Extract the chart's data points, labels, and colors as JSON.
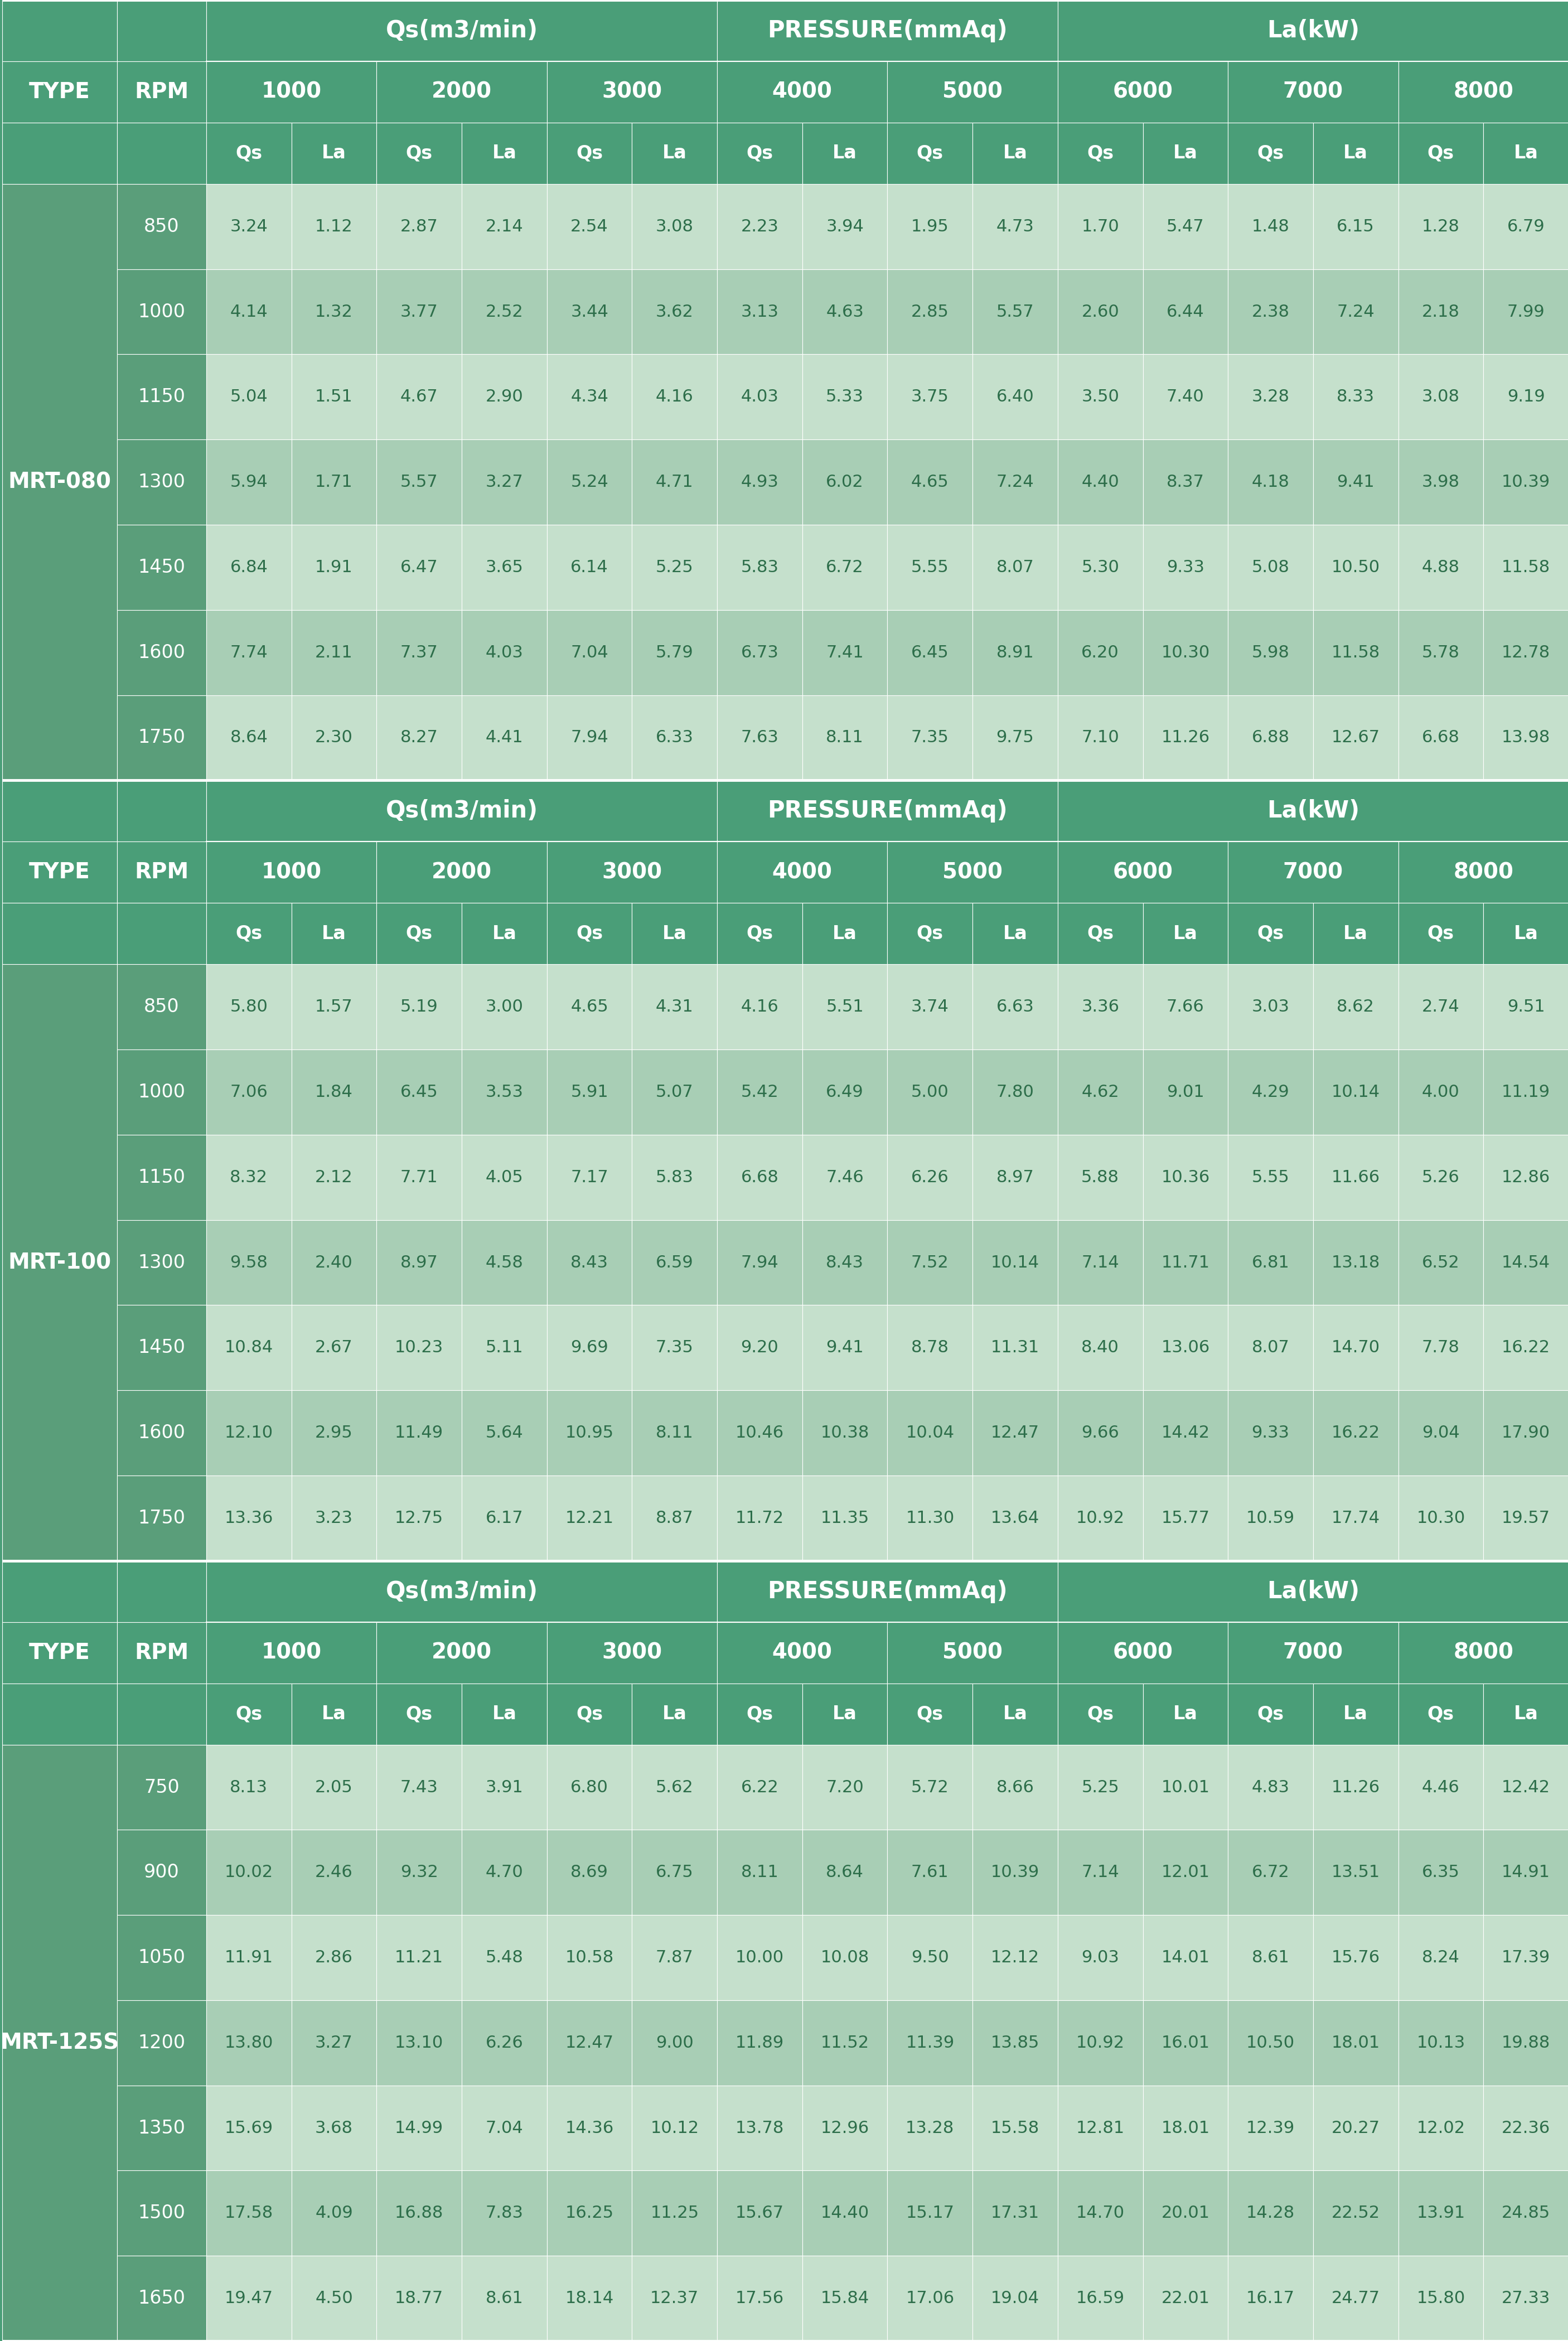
{
  "header_bg": "#4a9e78",
  "header_bg2": "#3d8f6a",
  "row_bg_light": "#c5e0cc",
  "row_bg_mid": "#a8ceb5",
  "type_col_bg": "#5a9e7a",
  "rpm_col_bg": "#5a9e7a",
  "header_text_color": "#ffffff",
  "data_text_color": "#2d6e4a",
  "type_text_color": "#ffffff",
  "pressure_labels": [
    "1000",
    "2000",
    "3000",
    "4000",
    "5000",
    "6000",
    "7000",
    "8000"
  ],
  "sections": [
    {
      "type": "MRT-080",
      "rows": [
        {
          "rpm": 850,
          "data": [
            3.24,
            1.12,
            2.87,
            2.14,
            2.54,
            3.08,
            2.23,
            3.94,
            1.95,
            4.73,
            1.7,
            5.47,
            1.48,
            6.15,
            1.28,
            6.79
          ]
        },
        {
          "rpm": 1000,
          "data": [
            4.14,
            1.32,
            3.77,
            2.52,
            3.44,
            3.62,
            3.13,
            4.63,
            2.85,
            5.57,
            2.6,
            6.44,
            2.38,
            7.24,
            2.18,
            7.99
          ]
        },
        {
          "rpm": 1150,
          "data": [
            5.04,
            1.51,
            4.67,
            2.9,
            4.34,
            4.16,
            4.03,
            5.33,
            3.75,
            6.4,
            3.5,
            7.4,
            3.28,
            8.33,
            3.08,
            9.19
          ]
        },
        {
          "rpm": 1300,
          "data": [
            5.94,
            1.71,
            5.57,
            3.27,
            5.24,
            4.71,
            4.93,
            6.02,
            4.65,
            7.24,
            4.4,
            8.37,
            4.18,
            9.41,
            3.98,
            10.39
          ]
        },
        {
          "rpm": 1450,
          "data": [
            6.84,
            1.91,
            6.47,
            3.65,
            6.14,
            5.25,
            5.83,
            6.72,
            5.55,
            8.07,
            5.3,
            9.33,
            5.08,
            10.5,
            4.88,
            11.58
          ]
        },
        {
          "rpm": 1600,
          "data": [
            7.74,
            2.11,
            7.37,
            4.03,
            7.04,
            5.79,
            6.73,
            7.41,
            6.45,
            8.91,
            6.2,
            10.3,
            5.98,
            11.58,
            5.78,
            12.78
          ]
        },
        {
          "rpm": 1750,
          "data": [
            8.64,
            2.3,
            8.27,
            4.41,
            7.94,
            6.33,
            7.63,
            8.11,
            7.35,
            9.75,
            7.1,
            11.26,
            6.88,
            12.67,
            6.68,
            13.98
          ]
        }
      ]
    },
    {
      "type": "MRT-100",
      "rows": [
        {
          "rpm": 850,
          "data": [
            5.8,
            1.57,
            5.19,
            3.0,
            4.65,
            4.31,
            4.16,
            5.51,
            3.74,
            6.63,
            3.36,
            7.66,
            3.03,
            8.62,
            2.74,
            9.51
          ]
        },
        {
          "rpm": 1000,
          "data": [
            7.06,
            1.84,
            6.45,
            3.53,
            5.91,
            5.07,
            5.42,
            6.49,
            5.0,
            7.8,
            4.62,
            9.01,
            4.29,
            10.14,
            4.0,
            11.19
          ]
        },
        {
          "rpm": 1150,
          "data": [
            8.32,
            2.12,
            7.71,
            4.05,
            7.17,
            5.83,
            6.68,
            7.46,
            6.26,
            8.97,
            5.88,
            10.36,
            5.55,
            11.66,
            5.26,
            12.86
          ]
        },
        {
          "rpm": 1300,
          "data": [
            9.58,
            2.4,
            8.97,
            4.58,
            8.43,
            6.59,
            7.94,
            8.43,
            7.52,
            10.14,
            7.14,
            11.71,
            6.81,
            13.18,
            6.52,
            14.54
          ]
        },
        {
          "rpm": 1450,
          "data": [
            10.84,
            2.67,
            10.23,
            5.11,
            9.69,
            7.35,
            9.2,
            9.41,
            8.78,
            11.31,
            8.4,
            13.06,
            8.07,
            14.7,
            7.78,
            16.22
          ]
        },
        {
          "rpm": 1600,
          "data": [
            12.1,
            2.95,
            11.49,
            5.64,
            10.95,
            8.11,
            10.46,
            10.38,
            10.04,
            12.47,
            9.66,
            14.42,
            9.33,
            16.22,
            9.04,
            17.9
          ]
        },
        {
          "rpm": 1750,
          "data": [
            13.36,
            3.23,
            12.75,
            6.17,
            12.21,
            8.87,
            11.72,
            11.35,
            11.3,
            13.64,
            10.92,
            15.77,
            10.59,
            17.74,
            10.3,
            19.57
          ]
        }
      ]
    },
    {
      "type": "MRT-125S",
      "rows": [
        {
          "rpm": 750,
          "data": [
            8.13,
            2.05,
            7.43,
            3.91,
            6.8,
            5.62,
            6.22,
            7.2,
            5.72,
            8.66,
            5.25,
            10.01,
            4.83,
            11.26,
            4.46,
            12.42
          ]
        },
        {
          "rpm": 900,
          "data": [
            10.02,
            2.46,
            9.32,
            4.7,
            8.69,
            6.75,
            8.11,
            8.64,
            7.61,
            10.39,
            7.14,
            12.01,
            6.72,
            13.51,
            6.35,
            14.91
          ]
        },
        {
          "rpm": 1050,
          "data": [
            11.91,
            2.86,
            11.21,
            5.48,
            10.58,
            7.87,
            10.0,
            10.08,
            9.5,
            12.12,
            9.03,
            14.01,
            8.61,
            15.76,
            8.24,
            17.39
          ]
        },
        {
          "rpm": 1200,
          "data": [
            13.8,
            3.27,
            13.1,
            6.26,
            12.47,
            9.0,
            11.89,
            11.52,
            11.39,
            13.85,
            10.92,
            16.01,
            10.5,
            18.01,
            10.13,
            19.88
          ]
        },
        {
          "rpm": 1350,
          "data": [
            15.69,
            3.68,
            14.99,
            7.04,
            14.36,
            10.12,
            13.78,
            12.96,
            13.28,
            15.58,
            12.81,
            18.01,
            12.39,
            20.27,
            12.02,
            22.36
          ]
        },
        {
          "rpm": 1500,
          "data": [
            17.58,
            4.09,
            16.88,
            7.83,
            16.25,
            11.25,
            15.67,
            14.4,
            15.17,
            17.31,
            14.7,
            20.01,
            14.28,
            22.52,
            13.91,
            24.85
          ]
        },
        {
          "rpm": 1650,
          "data": [
            19.47,
            4.5,
            18.77,
            8.61,
            18.14,
            12.37,
            17.56,
            15.84,
            17.06,
            19.04,
            16.59,
            22.01,
            16.17,
            24.77,
            15.8,
            27.33
          ]
        }
      ]
    }
  ]
}
